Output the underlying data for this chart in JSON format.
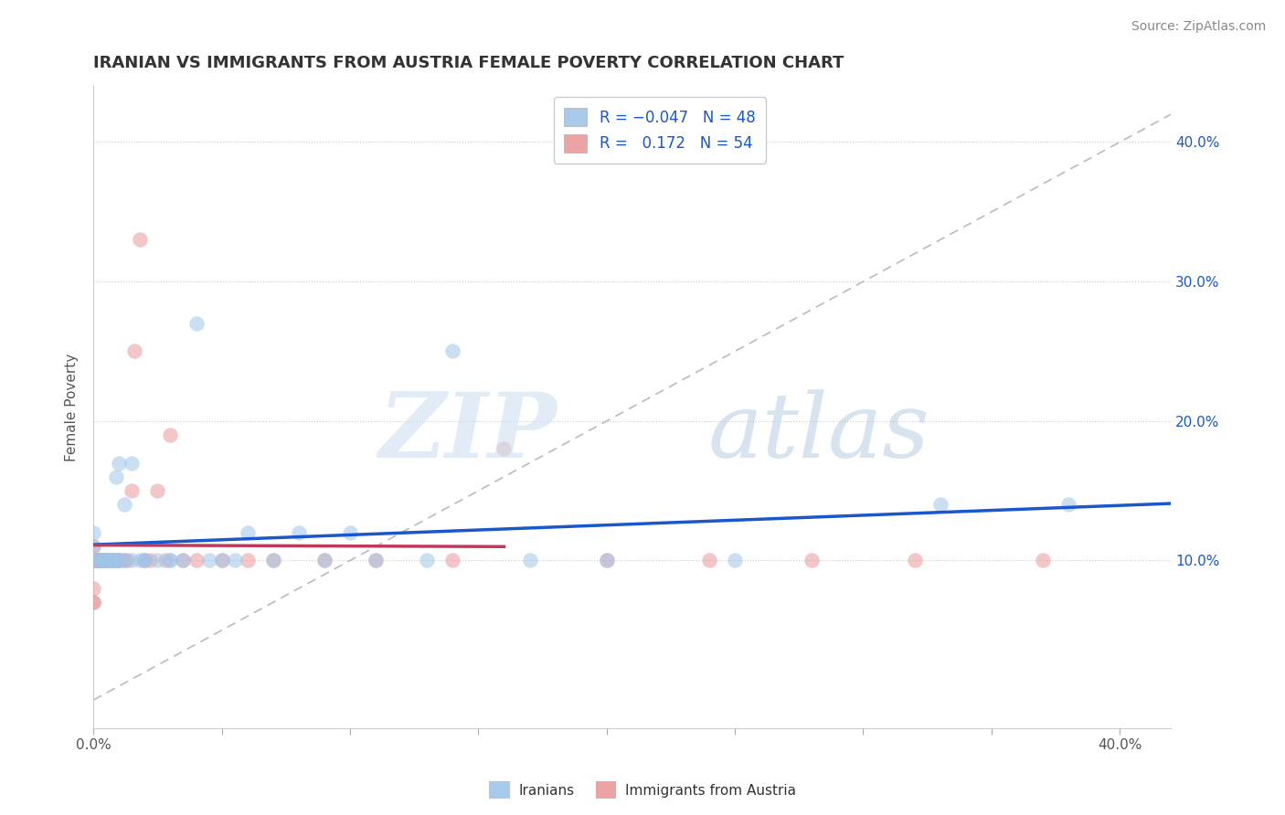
{
  "title": "IRANIAN VS IMMIGRANTS FROM AUSTRIA FEMALE POVERTY CORRELATION CHART",
  "source": "Source: ZipAtlas.com",
  "ylabel": "Female Poverty",
  "xlim": [
    0.0,
    0.42
  ],
  "ylim": [
    -0.02,
    0.44
  ],
  "color_iranian": "#9fc5e8",
  "color_austria": "#ea9999",
  "trend_color_iranian": "#1a56cc",
  "trend_color_austria": "#c0395a",
  "watermark_zip": "ZIP",
  "watermark_atlas": "atlas",
  "iranians_x": [
    0.0,
    0.0,
    0.0,
    0.002,
    0.002,
    0.003,
    0.003,
    0.003,
    0.004,
    0.005,
    0.005,
    0.005,
    0.007,
    0.007,
    0.008,
    0.008,
    0.009,
    0.01,
    0.01,
    0.01,
    0.012,
    0.012,
    0.015,
    0.015,
    0.018,
    0.02,
    0.02,
    0.025,
    0.03,
    0.03,
    0.035,
    0.04,
    0.045,
    0.05,
    0.055,
    0.06,
    0.07,
    0.08,
    0.09,
    0.1,
    0.11,
    0.13,
    0.14,
    0.17,
    0.2,
    0.25,
    0.33,
    0.38
  ],
  "iranians_y": [
    0.1,
    0.11,
    0.12,
    0.1,
    0.1,
    0.1,
    0.1,
    0.1,
    0.1,
    0.1,
    0.1,
    0.1,
    0.1,
    0.1,
    0.1,
    0.1,
    0.16,
    0.1,
    0.1,
    0.17,
    0.1,
    0.14,
    0.1,
    0.17,
    0.1,
    0.1,
    0.1,
    0.1,
    0.1,
    0.1,
    0.1,
    0.27,
    0.1,
    0.1,
    0.1,
    0.12,
    0.1,
    0.12,
    0.1,
    0.12,
    0.1,
    0.1,
    0.25,
    0.1,
    0.1,
    0.1,
    0.14,
    0.14
  ],
  "austria_x": [
    0.0,
    0.0,
    0.0,
    0.0,
    0.0,
    0.0,
    0.0,
    0.001,
    0.001,
    0.002,
    0.002,
    0.002,
    0.003,
    0.003,
    0.003,
    0.003,
    0.004,
    0.005,
    0.005,
    0.005,
    0.005,
    0.005,
    0.006,
    0.007,
    0.007,
    0.008,
    0.009,
    0.01,
    0.01,
    0.01,
    0.012,
    0.013,
    0.015,
    0.016,
    0.018,
    0.02,
    0.022,
    0.025,
    0.028,
    0.03,
    0.035,
    0.04,
    0.05,
    0.06,
    0.07,
    0.09,
    0.11,
    0.14,
    0.16,
    0.2,
    0.24,
    0.28,
    0.32,
    0.37
  ],
  "austria_y": [
    0.07,
    0.07,
    0.08,
    0.1,
    0.1,
    0.1,
    0.11,
    0.1,
    0.1,
    0.1,
    0.1,
    0.1,
    0.1,
    0.1,
    0.1,
    0.1,
    0.1,
    0.1,
    0.1,
    0.1,
    0.1,
    0.1,
    0.1,
    0.1,
    0.1,
    0.1,
    0.1,
    0.1,
    0.1,
    0.1,
    0.1,
    0.1,
    0.15,
    0.25,
    0.33,
    0.1,
    0.1,
    0.15,
    0.1,
    0.19,
    0.1,
    0.1,
    0.1,
    0.1,
    0.1,
    0.1,
    0.1,
    0.1,
    0.18,
    0.1,
    0.1,
    0.1,
    0.1,
    0.1
  ],
  "background_color": "#ffffff",
  "grid_color": "#cccccc",
  "marker_size": 140,
  "marker_alpha": 0.55,
  "title_fontsize": 13,
  "label_fontsize": 11,
  "tick_fontsize": 11,
  "legend_fontsize": 12,
  "source_fontsize": 10,
  "legend_R1": "R = -0.047",
  "legend_N1": "N = 48",
  "legend_R2": "R =  0.172",
  "legend_N2": "N = 54"
}
